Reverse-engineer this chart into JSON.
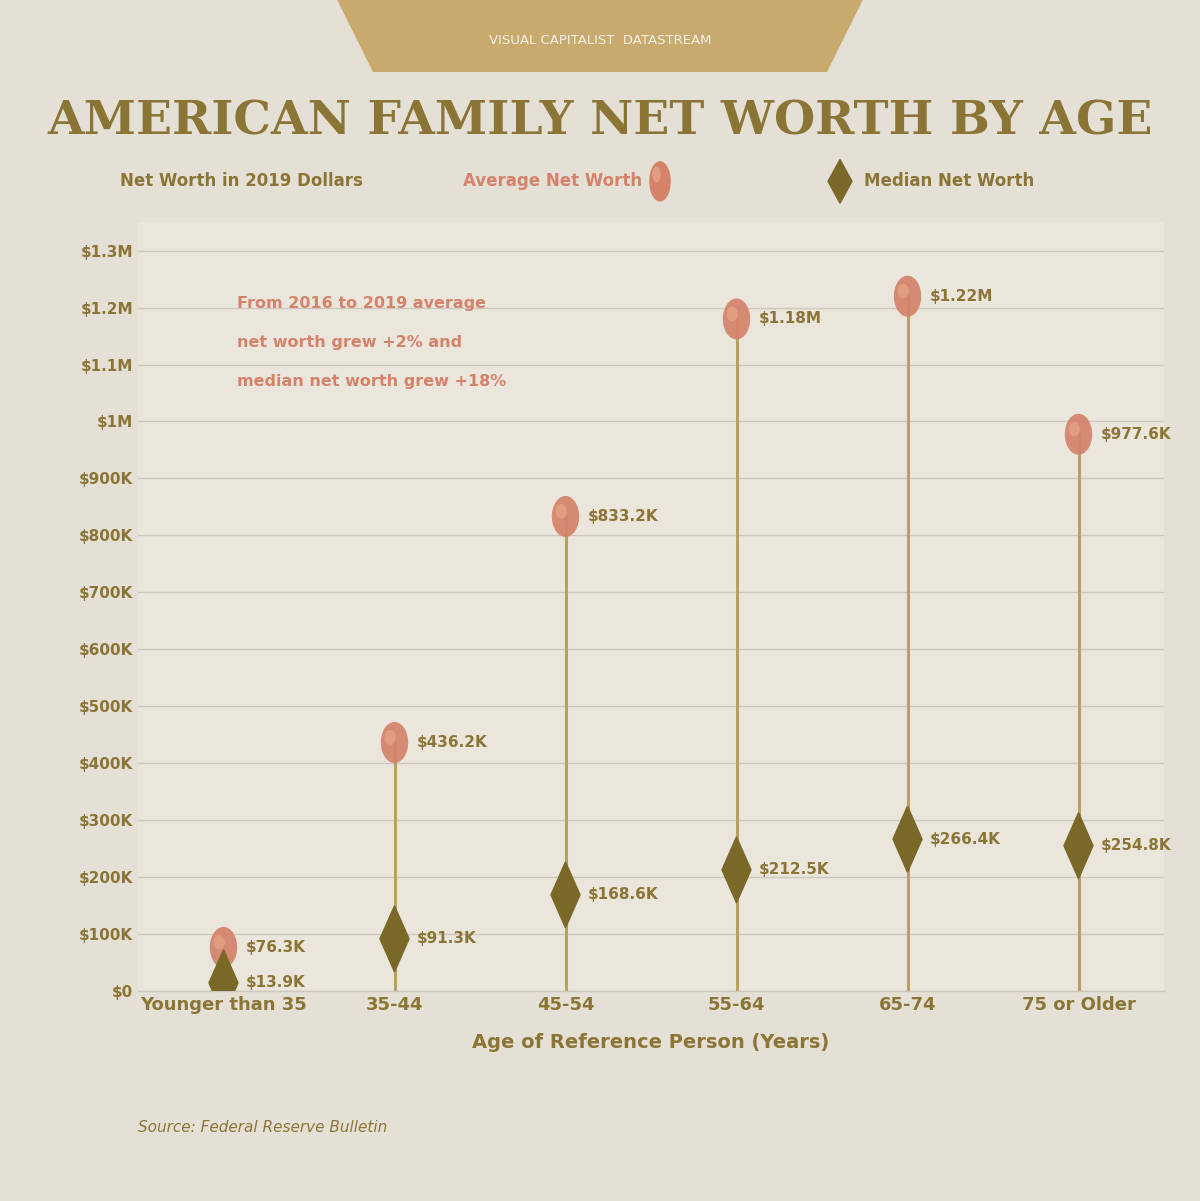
{
  "title": "AMERICAN FAMILY NET WORTH BY AGE",
  "subtitle": "VISUAL CAPITALIST  DATASTREAM",
  "ylabel": "Net Worth in 2019 Dollars",
  "xlabel": "Age of Reference Person (Years)",
  "source": "Source: Federal Reserve Bulletin",
  "legend_avg": "Average Net Worth",
  "legend_med": "Median Net Worth",
  "annotation_line1": "From 2016 to 2019 average",
  "annotation_line2": "net worth grew +2% and",
  "annotation_line3": "median net worth grew +18%",
  "categories": [
    "Younger than 35",
    "35-44",
    "45-54",
    "55-64",
    "65-74",
    "75 or Older"
  ],
  "avg_values": [
    76300,
    436200,
    833200,
    1180000,
    1220000,
    977600
  ],
  "med_values": [
    13900,
    91300,
    168600,
    212500,
    266400,
    254800
  ],
  "avg_labels": [
    "$76.3K",
    "$436.2K",
    "$833.2K",
    "$1.18M",
    "$1.22M",
    "$977.6K"
  ],
  "med_labels": [
    "$13.9K",
    "$91.3K",
    "$168.6K",
    "$212.5K",
    "$266.4K",
    "$254.8K"
  ],
  "ylim": [
    0,
    1350000
  ],
  "yticks": [
    0,
    100000,
    200000,
    300000,
    400000,
    500000,
    600000,
    700000,
    800000,
    900000,
    1000000,
    1100000,
    1200000,
    1300000
  ],
  "ytick_labels": [
    "$0",
    "$100K",
    "$200K",
    "$300K",
    "$400K",
    "$500K",
    "$600K",
    "$700K",
    "$800K",
    "$900K",
    "$1M",
    "$1.1M",
    "$1.2M",
    "$1.3M"
  ],
  "bg_color": "#e5e0d5",
  "plot_bg_color": "#eae6dc",
  "grid_color": "#ccc8bc",
  "title_color": "#8b7536",
  "text_color": "#8b7536",
  "avg_color": "#d4826a",
  "med_color": "#7a6828",
  "line_color": "#b8a060",
  "annotation_color": "#d4826a",
  "header_color": "#c8aa6e",
  "subtitle_color": "#f5f0e8"
}
